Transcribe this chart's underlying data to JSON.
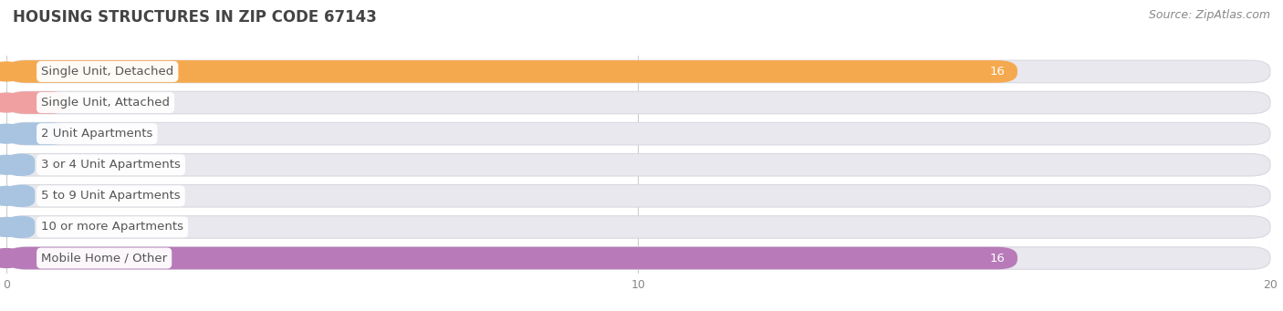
{
  "title": "HOUSING STRUCTURES IN ZIP CODE 67143",
  "source": "Source: ZipAtlas.com",
  "categories": [
    "Single Unit, Detached",
    "Single Unit, Attached",
    "2 Unit Apartments",
    "3 or 4 Unit Apartments",
    "5 to 9 Unit Apartments",
    "10 or more Apartments",
    "Mobile Home / Other"
  ],
  "values": [
    16,
    1,
    1,
    0,
    0,
    0,
    16
  ],
  "bar_colors": [
    "#f5a94e",
    "#f0a0a0",
    "#a8c4e0",
    "#a8c4e0",
    "#a8c4e0",
    "#a8c4e0",
    "#b87ab8"
  ],
  "track_color": "#e8e8ee",
  "track_border_color": "#d8d8e0",
  "xlim": [
    0,
    20
  ],
  "xticks": [
    0,
    10,
    20
  ],
  "bar_height": 0.72,
  "rounding_size": 0.32,
  "label_color": "#555555",
  "value_label_color_inside": "#ffffff",
  "value_label_color_outside": "#555555",
  "background_color": "#ffffff",
  "title_fontsize": 12,
  "source_fontsize": 9,
  "label_fontsize": 9.5,
  "value_fontsize": 9.5
}
